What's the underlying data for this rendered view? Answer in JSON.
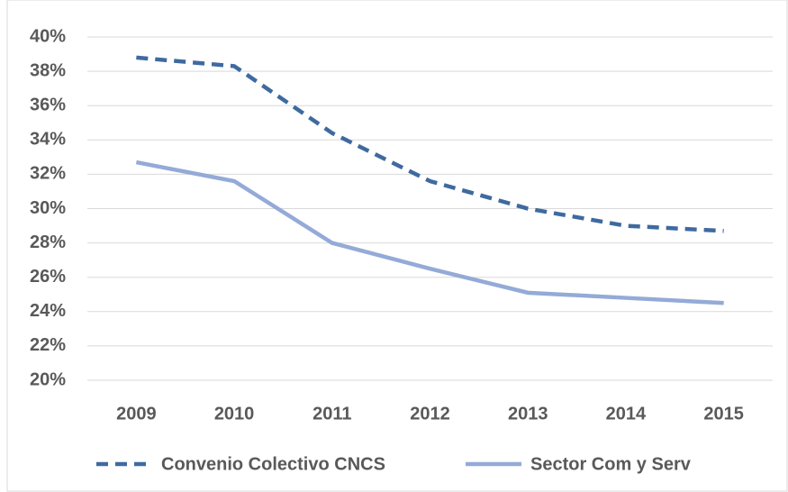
{
  "chart_data": {
    "type": "line",
    "categories": [
      "2009",
      "2010",
      "2011",
      "2012",
      "2013",
      "2014",
      "2015"
    ],
    "series": [
      {
        "name": "Convenio Colectivo CNCS",
        "color": "#3f6a9f",
        "dash": true,
        "values": [
          38.8,
          38.3,
          34.4,
          31.6,
          30.0,
          29.0,
          28.7
        ]
      },
      {
        "name": "Sector Com y Serv",
        "color": "#94aad7",
        "dash": false,
        "values": [
          32.7,
          31.6,
          28.0,
          26.5,
          25.1,
          24.8,
          24.5
        ]
      }
    ],
    "ylim": [
      20,
      40
    ],
    "yticks": [
      {
        "value": 20,
        "label": "20%"
      },
      {
        "value": 22,
        "label": "22%"
      },
      {
        "value": 24,
        "label": "24%"
      },
      {
        "value": 26,
        "label": "26%"
      },
      {
        "value": 28,
        "label": "28%"
      },
      {
        "value": 30,
        "label": "30%"
      },
      {
        "value": 32,
        "label": "32%"
      },
      {
        "value": 34,
        "label": "34%"
      },
      {
        "value": 36,
        "label": "36%"
      },
      {
        "value": 38,
        "label": "38%"
      },
      {
        "value": 40,
        "label": "40%"
      }
    ],
    "grid": true,
    "legend": "bottom"
  }
}
